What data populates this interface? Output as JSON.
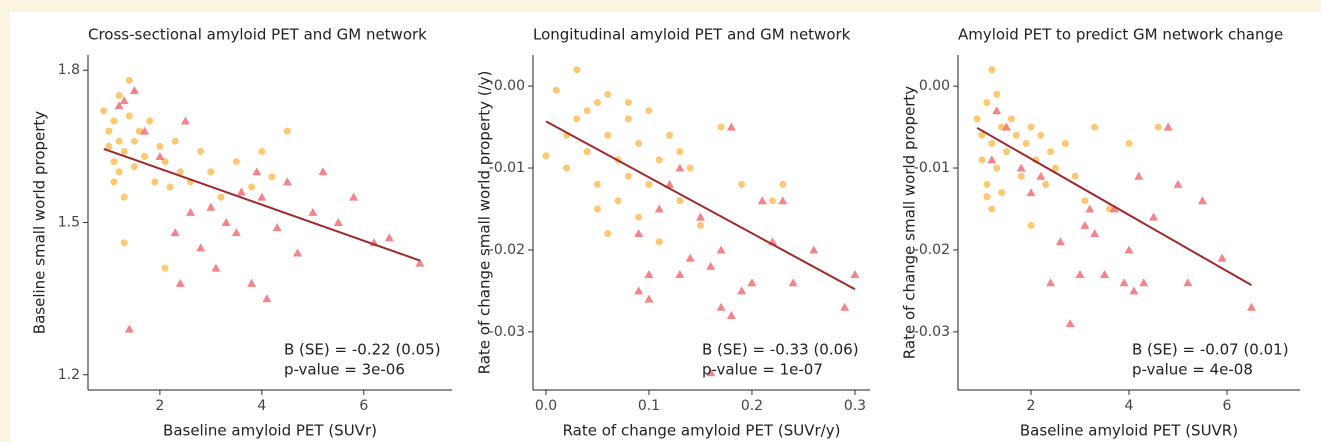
{
  "chart_data": [
    {
      "type": "scatter",
      "title": "Cross-sectional amyloid PET and GM network",
      "xlabel": "Baseline amyloid PET (SUVr)",
      "ylabel": "Baseline small world property",
      "xlim": [
        0.59,
        7.73
      ],
      "ylim": [
        1.17,
        1.83
      ],
      "xticks": [
        2,
        4,
        6
      ],
      "yticks": [
        1.2,
        1.5,
        1.8
      ],
      "series": [
        {
          "color": "#fbb034",
          "marker": "circle",
          "x": [
            0.9,
            1.0,
            1.0,
            1.1,
            1.1,
            1.1,
            1.2,
            1.2,
            1.2,
            1.3,
            1.3,
            1.4,
            1.4,
            1.5,
            1.5,
            1.6,
            1.7,
            1.8,
            1.9,
            2.0,
            2.1,
            2.2,
            2.3,
            2.4,
            2.6,
            2.8,
            3.0,
            3.2,
            3.5,
            3.8,
            4.0,
            4.2,
            4.5,
            1.3,
            2.1
          ],
          "values": [
            1.72,
            1.68,
            1.65,
            1.7,
            1.62,
            1.58,
            1.66,
            1.6,
            1.75,
            1.64,
            1.55,
            1.71,
            1.78,
            1.66,
            1.61,
            1.68,
            1.63,
            1.7,
            1.58,
            1.65,
            1.62,
            1.57,
            1.66,
            1.6,
            1.58,
            1.64,
            1.6,
            1.55,
            1.62,
            1.57,
            1.64,
            1.59,
            1.68,
            1.46,
            1.41
          ]
        },
        {
          "color": "#f0505a",
          "marker": "triangle",
          "x": [
            1.2,
            1.5,
            1.7,
            2.0,
            2.3,
            2.5,
            2.6,
            2.8,
            3.0,
            3.1,
            3.3,
            3.5,
            3.6,
            3.8,
            4.0,
            4.1,
            4.3,
            4.5,
            4.7,
            5.0,
            5.2,
            5.5,
            5.8,
            6.2,
            6.5,
            7.1,
            1.4,
            2.4,
            3.9,
            1.3
          ],
          "values": [
            1.73,
            1.76,
            1.68,
            1.63,
            1.48,
            1.7,
            1.52,
            1.45,
            1.53,
            1.41,
            1.5,
            1.48,
            1.56,
            1.38,
            1.55,
            1.35,
            1.49,
            1.58,
            1.44,
            1.52,
            1.6,
            1.5,
            1.55,
            1.46,
            1.47,
            1.42,
            1.29,
            1.38,
            1.6,
            1.74
          ]
        }
      ],
      "fit": {
        "color": "#9e2a2b",
        "x": [
          0.9,
          7.1
        ],
        "values": [
          1.645,
          1.425
        ]
      },
      "annotations": [
        "B (SE) = -0.22 (0.05)",
        "p-value = 3e-06"
      ]
    },
    {
      "type": "scatter",
      "title": "Longitudinal amyloid PET and GM network",
      "xlabel": "Rate of change amyloid PET (SUVr/y)",
      "ylabel": "Rate of change small world property (/y)",
      "xlim": [
        -0.0126,
        0.3146
      ],
      "ylim": [
        -0.0371,
        0.0038
      ],
      "xticks": [
        {
          "value": 0,
          "label": "0.0"
        },
        0.1,
        0.2,
        0.3
      ],
      "yticks": [
        {
          "value": 0,
          "label": "0.00"
        },
        -0.01,
        -0.02,
        -0.03
      ],
      "series": [
        {
          "color": "#fbb034",
          "marker": "circle",
          "x": [
            0.0,
            0.01,
            0.02,
            0.03,
            0.03,
            0.04,
            0.05,
            0.05,
            0.06,
            0.06,
            0.07,
            0.07,
            0.08,
            0.08,
            0.09,
            0.09,
            0.1,
            0.1,
            0.11,
            0.12,
            0.13,
            0.14,
            0.15,
            0.17,
            0.19,
            0.22,
            0.23,
            0.04,
            0.06,
            0.02,
            0.11,
            0.13,
            0.08,
            0.05
          ],
          "values": [
            -0.0085,
            -0.0005,
            -0.006,
            0.002,
            -0.004,
            -0.008,
            -0.002,
            -0.012,
            -0.006,
            -0.001,
            -0.009,
            -0.014,
            -0.004,
            -0.011,
            -0.007,
            -0.016,
            -0.003,
            -0.012,
            -0.009,
            -0.006,
            -0.014,
            -0.01,
            -0.017,
            -0.005,
            -0.012,
            -0.014,
            -0.012,
            -0.003,
            -0.018,
            -0.01,
            -0.019,
            -0.008,
            -0.002,
            -0.015
          ]
        },
        {
          "color": "#f0505a",
          "marker": "triangle",
          "x": [
            0.09,
            0.1,
            0.1,
            0.12,
            0.13,
            0.14,
            0.15,
            0.16,
            0.17,
            0.17,
            0.18,
            0.19,
            0.2,
            0.21,
            0.22,
            0.23,
            0.24,
            0.26,
            0.29,
            0.3,
            0.13,
            0.09,
            0.16,
            0.11,
            0.18
          ],
          "values": [
            -0.018,
            -0.023,
            -0.026,
            -0.012,
            -0.023,
            -0.021,
            -0.016,
            -0.035,
            -0.027,
            -0.02,
            -0.005,
            -0.025,
            -0.024,
            -0.014,
            -0.019,
            -0.014,
            -0.024,
            -0.02,
            -0.027,
            -0.023,
            -0.01,
            -0.025,
            -0.022,
            -0.015,
            -0.028
          ]
        }
      ],
      "fit": {
        "color": "#9e2a2b",
        "x": [
          0.0,
          0.3
        ],
        "values": [
          -0.0043,
          -0.0248
        ]
      },
      "annotations": [
        "B (SE) = -0.33 (0.06)",
        "p-value = 1e-07"
      ]
    },
    {
      "type": "scatter",
      "title": "Amyloid PET to predict GM network change",
      "xlabel": "Baseline amyloid PET (SUVR)",
      "ylabel": "Rate of change small world property",
      "xlim": [
        0.51,
        7.49
      ],
      "ylim": [
        -0.0371,
        0.0038
      ],
      "xticks": [
        2,
        4,
        6
      ],
      "yticks": [
        {
          "value": 0,
          "label": "0.00"
        },
        -0.01,
        -0.02,
        -0.03
      ],
      "series": [
        {
          "color": "#fbb034",
          "marker": "circle",
          "x": [
            0.9,
            1.0,
            1.0,
            1.1,
            1.1,
            1.2,
            1.2,
            1.3,
            1.3,
            1.4,
            1.4,
            1.5,
            1.6,
            1.7,
            1.8,
            1.9,
            2.0,
            2.1,
            2.2,
            2.3,
            2.4,
            2.5,
            2.7,
            2.9,
            3.1,
            3.3,
            3.6,
            4.0,
            4.6,
            1.2,
            1.1,
            2.0
          ],
          "values": [
            -0.004,
            -0.006,
            -0.009,
            -0.002,
            -0.012,
            0.002,
            -0.007,
            -0.001,
            -0.01,
            -0.005,
            -0.013,
            -0.008,
            -0.004,
            -0.006,
            -0.011,
            -0.007,
            -0.005,
            -0.009,
            -0.006,
            -0.012,
            -0.008,
            -0.01,
            -0.007,
            -0.011,
            -0.014,
            -0.005,
            -0.015,
            -0.007,
            -0.005,
            -0.015,
            -0.0135,
            -0.017
          ]
        },
        {
          "color": "#f0505a",
          "marker": "triangle",
          "x": [
            1.2,
            1.3,
            1.5,
            1.8,
            2.0,
            2.2,
            2.4,
            2.6,
            2.8,
            3.0,
            3.1,
            3.3,
            3.5,
            3.7,
            3.9,
            4.0,
            4.2,
            4.3,
            4.5,
            4.8,
            5.0,
            5.2,
            5.5,
            5.9,
            6.5,
            4.1,
            3.2
          ],
          "values": [
            -0.009,
            -0.003,
            -0.005,
            -0.01,
            -0.013,
            -0.011,
            -0.024,
            -0.019,
            -0.029,
            -0.023,
            -0.017,
            -0.018,
            -0.023,
            -0.015,
            -0.024,
            -0.02,
            -0.011,
            -0.024,
            -0.016,
            -0.005,
            -0.012,
            -0.024,
            -0.014,
            -0.021,
            -0.027,
            -0.025,
            -0.015
          ]
        }
      ],
      "fit": {
        "color": "#9e2a2b",
        "x": [
          0.9,
          6.5
        ],
        "values": [
          -0.0051,
          -0.0243
        ]
      },
      "annotations": [
        "B (SE) = -0.07 (0.01)",
        "p-value = 4e-08"
      ]
    }
  ]
}
